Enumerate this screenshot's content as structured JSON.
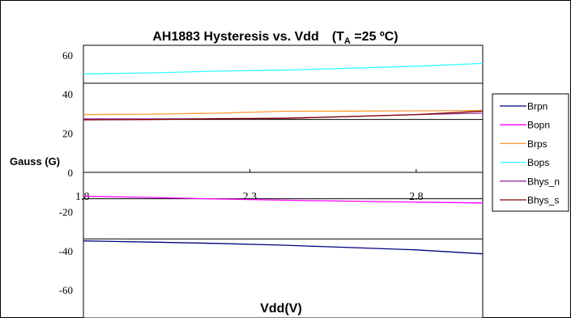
{
  "chart_data": {
    "type": "line",
    "title": "AH1883 Hysteresis vs. Vdd",
    "title_condition": {
      "prefix": "(T",
      "subscript": "A",
      "suffix": " =25 ºC)"
    },
    "xlabel": "Vdd(V)",
    "ylabel": "Gauss (G)",
    "x": [
      1.8,
      2.0,
      2.2,
      2.4,
      2.6,
      2.8,
      3.0
    ],
    "x_ticks": [
      1.8,
      2.3,
      2.8
    ],
    "x_tick_labels": [
      "1.8",
      "2.3",
      "2.8"
    ],
    "xlim": [
      1.8,
      3.0
    ],
    "y_ticks": [
      60,
      40,
      20,
      0,
      -20,
      -40,
      -60
    ],
    "y_tick_labels": [
      "60",
      "40",
      "20",
      "0",
      "-20",
      "-40",
      "-60"
    ],
    "ylim": [
      -65,
      65
    ],
    "grid_y": true,
    "grid_values": [
      45.5,
      27,
      -13.5,
      -34
    ],
    "legend_position": "right",
    "series": [
      {
        "name": "Brpn",
        "color": "#000080",
        "values": [
          -35,
          -35.6,
          -36.3,
          -37.2,
          -38.4,
          -39.6,
          -41.6
        ]
      },
      {
        "name": "Bopn",
        "color": "#ff00ff",
        "values": [
          -12.2,
          -12.8,
          -13.6,
          -14.2,
          -14.7,
          -15.2,
          -15.6
        ]
      },
      {
        "name": "Brps",
        "color": "#ff9933",
        "values": [
          29.5,
          29.7,
          30.2,
          31.2,
          31.3,
          31.4,
          31.6
        ]
      },
      {
        "name": "Bops",
        "color": "#33ffff",
        "values": [
          50.3,
          50.8,
          51.7,
          52.2,
          53.2,
          54.2,
          55.6
        ]
      },
      {
        "name": "Bhys_n",
        "color": "#993399",
        "values": [
          27.3,
          27.3,
          27.3,
          27.5,
          28.5,
          29.5,
          30.2
        ]
      },
      {
        "name": "Bhys_s",
        "color": "#800000",
        "values": [
          26.8,
          27,
          27.4,
          27.6,
          28.5,
          29.5,
          31.3
        ]
      }
    ]
  }
}
